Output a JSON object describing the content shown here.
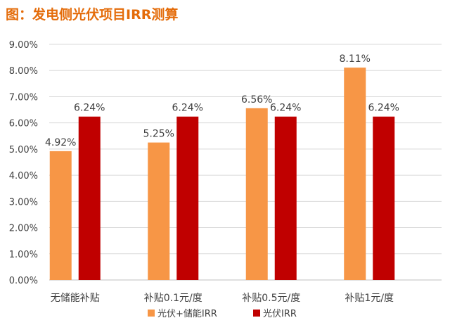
{
  "title": "图：发电侧光伏项目IRR测算",
  "colors": {
    "title": "#e46c0a",
    "series1": "#f79646",
    "series2": "#c00000",
    "gridline": "#d9d9d9",
    "text": "#404040"
  },
  "chart_data": {
    "type": "bar",
    "title": "图：发电侧光伏项目IRR测算",
    "categories": [
      "无储能补贴",
      "补贴0.1元/度",
      "补贴0.5元/度",
      "补贴1元/度"
    ],
    "series": [
      {
        "name": "光伏+储能IRR",
        "values": [
          4.92,
          5.25,
          6.56,
          8.11
        ],
        "labels": [
          "4.92%",
          "5.25%",
          "6.56%",
          "8.11%"
        ]
      },
      {
        "name": "光伏IRR",
        "values": [
          6.24,
          6.24,
          6.24,
          6.24
        ],
        "labels": [
          "6.24%",
          "6.24%",
          "6.24%",
          "6.24%"
        ]
      }
    ],
    "ylim": [
      0,
      9
    ],
    "yticks": [
      0,
      1,
      2,
      3,
      4,
      5,
      6,
      7,
      8,
      9
    ],
    "ytick_labels": [
      "0.00%",
      "1.00%",
      "2.00%",
      "3.00%",
      "4.00%",
      "5.00%",
      "6.00%",
      "7.00%",
      "8.00%",
      "9.00%"
    ],
    "grid": true,
    "legend_position": "bottom"
  }
}
